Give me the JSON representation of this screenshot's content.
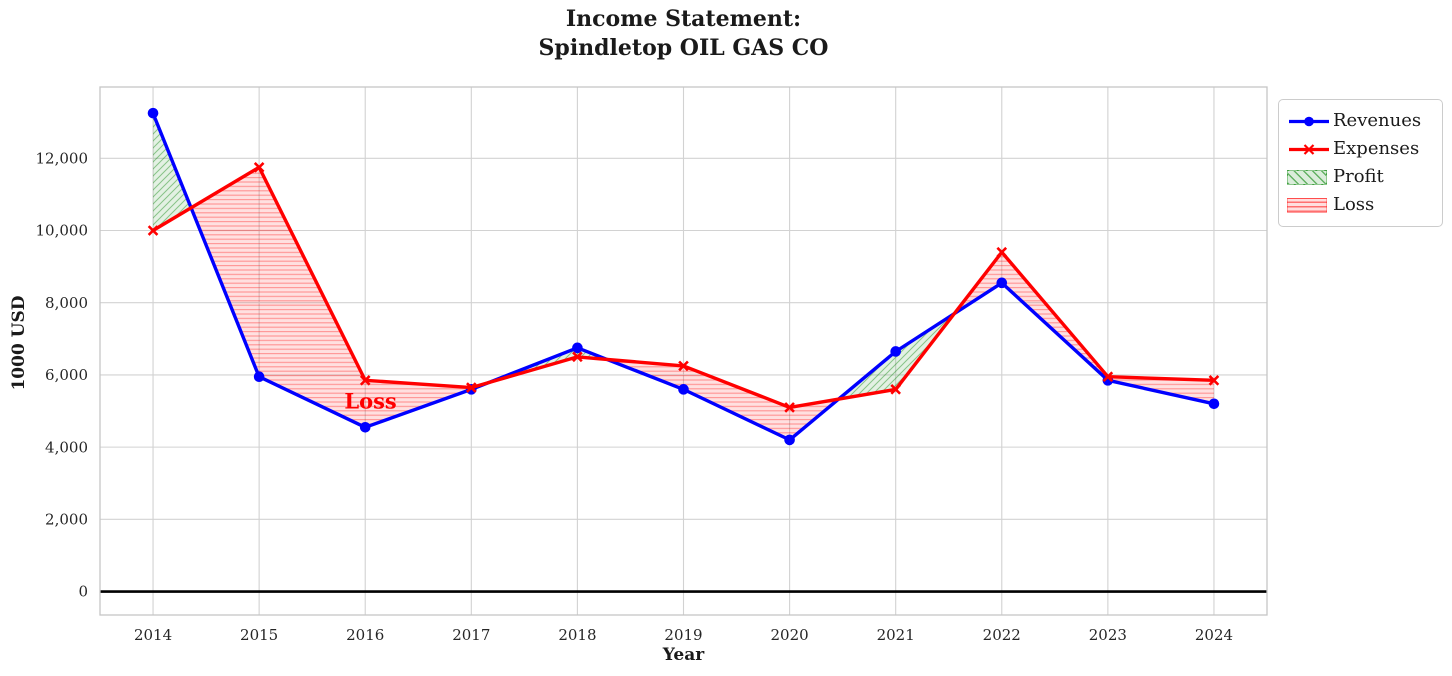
{
  "title": {
    "line1": "Income Statement:",
    "line2": "Spindletop OIL GAS CO"
  },
  "chart_data": {
    "type": "line",
    "x": [
      2014,
      2015,
      2016,
      2017,
      2018,
      2019,
      2020,
      2021,
      2022,
      2023,
      2024
    ],
    "series": [
      {
        "name": "Revenues",
        "color": "#0000ff",
        "marker": "circle",
        "values": [
          13250,
          5950,
          4550,
          5600,
          6750,
          5600,
          4200,
          6650,
          8550,
          5850,
          5200
        ]
      },
      {
        "name": "Expenses",
        "color": "#ff0000",
        "marker": "x",
        "values": [
          10000,
          11750,
          5850,
          5650,
          6500,
          6250,
          5100,
          5600,
          9400,
          5950,
          5850
        ]
      }
    ],
    "fills": [
      {
        "name": "Profit",
        "color": "#008000",
        "hatch": "diagonal",
        "rule": "revenues_above_expenses"
      },
      {
        "name": "Loss",
        "color": "#ff0000",
        "hatch": "horizontal",
        "rule": "expenses_above_revenues"
      }
    ],
    "xlabel": "Year",
    "ylabel": "1000 USD",
    "yticks": [
      0,
      2000,
      4000,
      6000,
      8000,
      10000,
      12000
    ],
    "ytick_labels": [
      "0",
      "2,000",
      "4,000",
      "6,000",
      "8,000",
      "10,000",
      "12,000"
    ],
    "xlim": [
      2013.5,
      2024.5
    ],
    "ylim": [
      -650,
      13975
    ],
    "grid": true,
    "zero_line": 0,
    "legend_position": "outside upper right",
    "annotation": {
      "text": "Loss",
      "x": 2016.05,
      "y": 5270,
      "color": "#ff0000"
    }
  }
}
